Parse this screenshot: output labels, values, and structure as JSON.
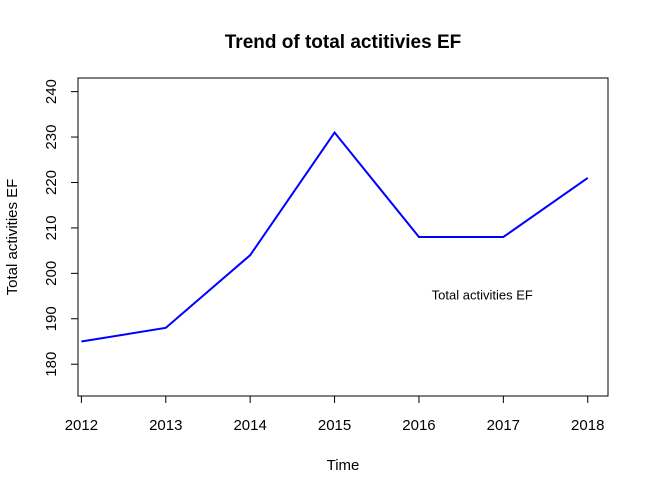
{
  "chart_data": {
    "type": "line",
    "title": "Trend of total actitivies EF",
    "xlabel": "Time",
    "ylabel": "Total activities EF",
    "x": [
      2012,
      2013,
      2014,
      2015,
      2016,
      2017,
      2018
    ],
    "series": [
      {
        "values": [
          185,
          188,
          204,
          231,
          208,
          208,
          221
        ],
        "color": "#0000FF"
      }
    ],
    "xlim": [
      2011.96,
      2018.24
    ],
    "ylim": [
      173,
      243
    ],
    "xticks": [
      2012,
      2013,
      2014,
      2015,
      2016,
      2017,
      2018
    ],
    "yticks": [
      180,
      190,
      200,
      210,
      220,
      230,
      240
    ],
    "grid": false,
    "annotations": [
      {
        "text": "Total activities EF",
        "x": 2016.75,
        "y": 195
      }
    ]
  }
}
